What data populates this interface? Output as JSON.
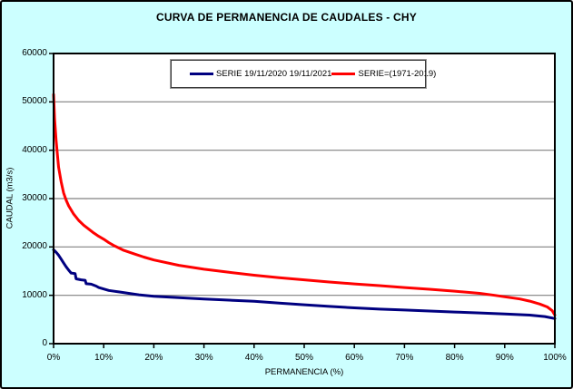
{
  "chart_data": {
    "type": "line",
    "title": "CURVA DE PERMANENCIA DE CAUDALES - CHY",
    "xlabel": "PERMANENCIA (%)",
    "ylabel": "CAUDAL (m3/s)",
    "xlim": [
      0,
      100
    ],
    "ylim": [
      0,
      60000
    ],
    "x_tick_values": [
      0,
      10,
      20,
      30,
      40,
      50,
      60,
      70,
      80,
      90,
      100
    ],
    "x_tick_labels": [
      "0%",
      "10%",
      "20%",
      "30%",
      "40%",
      "50%",
      "60%",
      "70%",
      "80%",
      "90%",
      "100%"
    ],
    "y_tick_values": [
      0,
      10000,
      20000,
      30000,
      40000,
      50000,
      60000
    ],
    "y_tick_labels": [
      "0",
      "10000",
      "20000",
      "30000",
      "40000",
      "50000",
      "60000"
    ],
    "grid": "horizontal",
    "legend_position": "top-center-inside",
    "series": [
      {
        "name": "SERIE 19/11/2020 19/11/2021",
        "color": "#000080",
        "x": [
          0,
          0.5,
          1,
          1.5,
          2,
          2.5,
          3,
          3.5,
          4.3,
          4.5,
          5.5,
          6.3,
          6.5,
          7.5,
          8.5,
          9,
          10,
          11,
          13,
          15,
          17,
          20,
          25,
          30,
          35,
          40,
          45,
          50,
          55,
          60,
          65,
          70,
          75,
          80,
          85,
          90,
          95,
          98,
          100
        ],
        "values": [
          19400,
          18900,
          18300,
          17500,
          16700,
          15900,
          15200,
          14600,
          14500,
          13400,
          13200,
          13100,
          12400,
          12300,
          11900,
          11600,
          11300,
          11000,
          10700,
          10400,
          10100,
          9800,
          9500,
          9250,
          9000,
          8750,
          8400,
          8050,
          7700,
          7400,
          7150,
          6950,
          6750,
          6550,
          6350,
          6150,
          5900,
          5600,
          5200
        ]
      },
      {
        "name": "SERIE=(1971-2019)",
        "color": "#FF0000",
        "x": [
          0,
          0.2,
          0.5,
          1,
          1.5,
          2,
          2.5,
          3,
          4,
          5,
          6,
          7,
          8,
          9,
          10,
          11,
          12,
          14,
          16,
          18,
          20,
          25,
          30,
          35,
          40,
          45,
          50,
          55,
          60,
          65,
          70,
          75,
          80,
          85,
          88,
          90,
          93,
          95,
          97,
          98.5,
          99.5,
          100
        ],
        "values": [
          51500,
          46500,
          42000,
          36500,
          33500,
          31200,
          29700,
          28500,
          26800,
          25500,
          24500,
          23700,
          22900,
          22200,
          21600,
          20900,
          20300,
          19300,
          18600,
          17900,
          17300,
          16200,
          15400,
          14750,
          14150,
          13650,
          13200,
          12750,
          12350,
          12000,
          11600,
          11250,
          10850,
          10400,
          10000,
          9700,
          9250,
          8800,
          8200,
          7600,
          6800,
          5900
        ]
      }
    ]
  },
  "colors": {
    "background": "#CCFFFF",
    "plot_background": "#FFFFFF",
    "gridline": "#808080",
    "axis": "#000000"
  }
}
